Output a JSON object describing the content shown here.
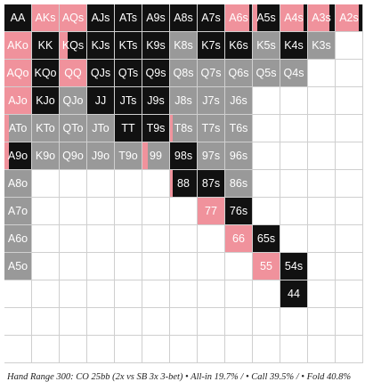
{
  "colors": {
    "allin": "#f0929c",
    "call": "#999999",
    "fold": "#111111",
    "empty": "#ffffff"
  },
  "caption": "Hand Range 300: CO 25bb (2x vs SB 3x 3-bet) • All-in 19.7% / • Call 39.5% / • Fold 40.8%",
  "grid": [
    [
      {
        "label": "AA",
        "mix": [
          [
            "fold",
            1
          ]
        ]
      },
      {
        "label": "AKs",
        "mix": [
          [
            "allin",
            1
          ]
        ]
      },
      {
        "label": "AQs",
        "mix": [
          [
            "allin",
            1
          ]
        ]
      },
      {
        "label": "AJs",
        "mix": [
          [
            "fold",
            1
          ]
        ]
      },
      {
        "label": "ATs",
        "mix": [
          [
            "fold",
            1
          ]
        ]
      },
      {
        "label": "A9s",
        "mix": [
          [
            "fold",
            1
          ]
        ]
      },
      {
        "label": "A8s",
        "mix": [
          [
            "fold",
            1
          ]
        ]
      },
      {
        "label": "A7s",
        "mix": [
          [
            "fold",
            1
          ]
        ]
      },
      {
        "label": "A6s",
        "mix": [
          [
            "allin",
            0.9
          ],
          [
            "fold",
            0.1
          ]
        ]
      },
      {
        "label": "A5s",
        "mix": [
          [
            "allin",
            0.15
          ],
          [
            "fold",
            0.85
          ]
        ]
      },
      {
        "label": "A4s",
        "mix": [
          [
            "allin",
            0.85
          ],
          [
            "fold",
            0.15
          ]
        ]
      },
      {
        "label": "A3s",
        "mix": [
          [
            "allin",
            0.8
          ],
          [
            "fold",
            0.2
          ]
        ]
      },
      {
        "label": "A2s",
        "mix": [
          [
            "allin",
            0.85
          ],
          [
            "fold",
            0.15
          ]
        ]
      }
    ],
    [
      {
        "label": "AKo",
        "mix": [
          [
            "allin",
            1
          ]
        ]
      },
      {
        "label": "KK",
        "mix": [
          [
            "fold",
            1
          ]
        ]
      },
      {
        "label": "KQs",
        "mix": [
          [
            "allin",
            0.3
          ],
          [
            "fold",
            0.7
          ]
        ]
      },
      {
        "label": "KJs",
        "mix": [
          [
            "fold",
            1
          ]
        ]
      },
      {
        "label": "KTs",
        "mix": [
          [
            "fold",
            1
          ]
        ]
      },
      {
        "label": "K9s",
        "mix": [
          [
            "fold",
            1
          ]
        ]
      },
      {
        "label": "K8s",
        "mix": [
          [
            "call",
            1
          ]
        ]
      },
      {
        "label": "K7s",
        "mix": [
          [
            "fold",
            1
          ]
        ]
      },
      {
        "label": "K6s",
        "mix": [
          [
            "fold",
            1
          ]
        ]
      },
      {
        "label": "K5s",
        "mix": [
          [
            "call",
            1
          ]
        ]
      },
      {
        "label": "K4s",
        "mix": [
          [
            "fold",
            1
          ]
        ]
      },
      {
        "label": "K3s",
        "mix": [
          [
            "call",
            1
          ]
        ]
      },
      {
        "label": "",
        "mix": []
      }
    ],
    [
      {
        "label": "AQo",
        "mix": [
          [
            "allin",
            1
          ]
        ]
      },
      {
        "label": "KQo",
        "mix": [
          [
            "fold",
            1
          ]
        ]
      },
      {
        "label": "QQ",
        "mix": [
          [
            "allin",
            1
          ]
        ]
      },
      {
        "label": "QJs",
        "mix": [
          [
            "fold",
            1
          ]
        ]
      },
      {
        "label": "QTs",
        "mix": [
          [
            "fold",
            1
          ]
        ]
      },
      {
        "label": "Q9s",
        "mix": [
          [
            "fold",
            1
          ]
        ]
      },
      {
        "label": "Q8s",
        "mix": [
          [
            "call",
            1
          ]
        ]
      },
      {
        "label": "Q7s",
        "mix": [
          [
            "call",
            1
          ]
        ]
      },
      {
        "label": "Q6s",
        "mix": [
          [
            "call",
            1
          ]
        ]
      },
      {
        "label": "Q5s",
        "mix": [
          [
            "call",
            1
          ]
        ]
      },
      {
        "label": "Q4s",
        "mix": [
          [
            "call",
            1
          ]
        ]
      },
      {
        "label": "",
        "mix": []
      },
      {
        "label": "",
        "mix": []
      }
    ],
    [
      {
        "label": "AJo",
        "mix": [
          [
            "allin",
            1
          ]
        ]
      },
      {
        "label": "KJo",
        "mix": [
          [
            "fold",
            1
          ]
        ]
      },
      {
        "label": "QJo",
        "mix": [
          [
            "call",
            1
          ]
        ]
      },
      {
        "label": "JJ",
        "mix": [
          [
            "fold",
            1
          ]
        ]
      },
      {
        "label": "JTs",
        "mix": [
          [
            "fold",
            1
          ]
        ]
      },
      {
        "label": "J9s",
        "mix": [
          [
            "fold",
            1
          ]
        ]
      },
      {
        "label": "J8s",
        "mix": [
          [
            "call",
            1
          ]
        ]
      },
      {
        "label": "J7s",
        "mix": [
          [
            "call",
            1
          ]
        ]
      },
      {
        "label": "J6s",
        "mix": [
          [
            "call",
            1
          ]
        ]
      },
      {
        "label": "",
        "mix": []
      },
      {
        "label": "",
        "mix": []
      },
      {
        "label": "",
        "mix": []
      },
      {
        "label": "",
        "mix": []
      }
    ],
    [
      {
        "label": "ATo",
        "mix": [
          [
            "allin",
            0.15
          ],
          [
            "call",
            0.85
          ]
        ]
      },
      {
        "label": "KTo",
        "mix": [
          [
            "call",
            1
          ]
        ]
      },
      {
        "label": "QTo",
        "mix": [
          [
            "call",
            1
          ]
        ]
      },
      {
        "label": "JTo",
        "mix": [
          [
            "call",
            1
          ]
        ]
      },
      {
        "label": "TT",
        "mix": [
          [
            "fold",
            1
          ]
        ]
      },
      {
        "label": "T9s",
        "mix": [
          [
            "fold",
            1
          ]
        ]
      },
      {
        "label": "T8s",
        "mix": [
          [
            "allin",
            0.1
          ],
          [
            "call",
            0.9
          ]
        ]
      },
      {
        "label": "T7s",
        "mix": [
          [
            "call",
            1
          ]
        ]
      },
      {
        "label": "T6s",
        "mix": [
          [
            "call",
            1
          ]
        ]
      },
      {
        "label": "",
        "mix": []
      },
      {
        "label": "",
        "mix": []
      },
      {
        "label": "",
        "mix": []
      },
      {
        "label": "",
        "mix": []
      }
    ],
    [
      {
        "label": "A9o",
        "mix": [
          [
            "allin",
            0.15
          ],
          [
            "fold",
            0.85
          ]
        ]
      },
      {
        "label": "K9o",
        "mix": [
          [
            "call",
            1
          ]
        ]
      },
      {
        "label": "Q9o",
        "mix": [
          [
            "call",
            1
          ]
        ]
      },
      {
        "label": "J9o",
        "mix": [
          [
            "call",
            1
          ]
        ]
      },
      {
        "label": "T9o",
        "mix": [
          [
            "call",
            1
          ]
        ]
      },
      {
        "label": "99",
        "mix": [
          [
            "allin",
            0.2
          ],
          [
            "call",
            0.8
          ]
        ]
      },
      {
        "label": "98s",
        "mix": [
          [
            "fold",
            1
          ]
        ]
      },
      {
        "label": "97s",
        "mix": [
          [
            "call",
            1
          ]
        ]
      },
      {
        "label": "96s",
        "mix": [
          [
            "call",
            1
          ]
        ]
      },
      {
        "label": "",
        "mix": []
      },
      {
        "label": "",
        "mix": []
      },
      {
        "label": "",
        "mix": []
      },
      {
        "label": "",
        "mix": []
      }
    ],
    [
      {
        "label": "A8o",
        "mix": [
          [
            "call",
            1
          ]
        ]
      },
      {
        "label": "",
        "mix": []
      },
      {
        "label": "",
        "mix": []
      },
      {
        "label": "",
        "mix": []
      },
      {
        "label": "",
        "mix": []
      },
      {
        "label": "",
        "mix": []
      },
      {
        "label": "88",
        "mix": [
          [
            "allin",
            0.1
          ],
          [
            "fold",
            0.9
          ]
        ]
      },
      {
        "label": "87s",
        "mix": [
          [
            "fold",
            1
          ]
        ]
      },
      {
        "label": "86s",
        "mix": [
          [
            "call",
            1
          ]
        ]
      },
      {
        "label": "",
        "mix": []
      },
      {
        "label": "",
        "mix": []
      },
      {
        "label": "",
        "mix": []
      },
      {
        "label": "",
        "mix": []
      }
    ],
    [
      {
        "label": "A7o",
        "mix": [
          [
            "call",
            1
          ]
        ]
      },
      {
        "label": "",
        "mix": []
      },
      {
        "label": "",
        "mix": []
      },
      {
        "label": "",
        "mix": []
      },
      {
        "label": "",
        "mix": []
      },
      {
        "label": "",
        "mix": []
      },
      {
        "label": "",
        "mix": []
      },
      {
        "label": "77",
        "mix": [
          [
            "allin",
            1
          ]
        ]
      },
      {
        "label": "76s",
        "mix": [
          [
            "fold",
            1
          ]
        ]
      },
      {
        "label": "",
        "mix": []
      },
      {
        "label": "",
        "mix": []
      },
      {
        "label": "",
        "mix": []
      },
      {
        "label": "",
        "mix": []
      }
    ],
    [
      {
        "label": "A6o",
        "mix": [
          [
            "call",
            1
          ]
        ]
      },
      {
        "label": "",
        "mix": []
      },
      {
        "label": "",
        "mix": []
      },
      {
        "label": "",
        "mix": []
      },
      {
        "label": "",
        "mix": []
      },
      {
        "label": "",
        "mix": []
      },
      {
        "label": "",
        "mix": []
      },
      {
        "label": "",
        "mix": []
      },
      {
        "label": "66",
        "mix": [
          [
            "allin",
            1
          ]
        ]
      },
      {
        "label": "65s",
        "mix": [
          [
            "fold",
            1
          ]
        ]
      },
      {
        "label": "",
        "mix": []
      },
      {
        "label": "",
        "mix": []
      },
      {
        "label": "",
        "mix": []
      }
    ],
    [
      {
        "label": "A5o",
        "mix": [
          [
            "call",
            1
          ]
        ]
      },
      {
        "label": "",
        "mix": []
      },
      {
        "label": "",
        "mix": []
      },
      {
        "label": "",
        "mix": []
      },
      {
        "label": "",
        "mix": []
      },
      {
        "label": "",
        "mix": []
      },
      {
        "label": "",
        "mix": []
      },
      {
        "label": "",
        "mix": []
      },
      {
        "label": "",
        "mix": []
      },
      {
        "label": "55",
        "mix": [
          [
            "allin",
            1
          ]
        ]
      },
      {
        "label": "54s",
        "mix": [
          [
            "fold",
            1
          ]
        ]
      },
      {
        "label": "",
        "mix": []
      },
      {
        "label": "",
        "mix": []
      }
    ],
    [
      {
        "label": "",
        "mix": []
      },
      {
        "label": "",
        "mix": []
      },
      {
        "label": "",
        "mix": []
      },
      {
        "label": "",
        "mix": []
      },
      {
        "label": "",
        "mix": []
      },
      {
        "label": "",
        "mix": []
      },
      {
        "label": "",
        "mix": []
      },
      {
        "label": "",
        "mix": []
      },
      {
        "label": "",
        "mix": []
      },
      {
        "label": "",
        "mix": []
      },
      {
        "label": "44",
        "mix": [
          [
            "fold",
            1
          ]
        ]
      },
      {
        "label": "",
        "mix": []
      },
      {
        "label": "",
        "mix": []
      }
    ],
    [
      {
        "label": "",
        "mix": []
      },
      {
        "label": "",
        "mix": []
      },
      {
        "label": "",
        "mix": []
      },
      {
        "label": "",
        "mix": []
      },
      {
        "label": "",
        "mix": []
      },
      {
        "label": "",
        "mix": []
      },
      {
        "label": "",
        "mix": []
      },
      {
        "label": "",
        "mix": []
      },
      {
        "label": "",
        "mix": []
      },
      {
        "label": "",
        "mix": []
      },
      {
        "label": "",
        "mix": []
      },
      {
        "label": "",
        "mix": []
      },
      {
        "label": "",
        "mix": []
      }
    ],
    [
      {
        "label": "",
        "mix": []
      },
      {
        "label": "",
        "mix": []
      },
      {
        "label": "",
        "mix": []
      },
      {
        "label": "",
        "mix": []
      },
      {
        "label": "",
        "mix": []
      },
      {
        "label": "",
        "mix": []
      },
      {
        "label": "",
        "mix": []
      },
      {
        "label": "",
        "mix": []
      },
      {
        "label": "",
        "mix": []
      },
      {
        "label": "",
        "mix": []
      },
      {
        "label": "",
        "mix": []
      },
      {
        "label": "",
        "mix": []
      },
      {
        "label": "",
        "mix": []
      }
    ]
  ]
}
